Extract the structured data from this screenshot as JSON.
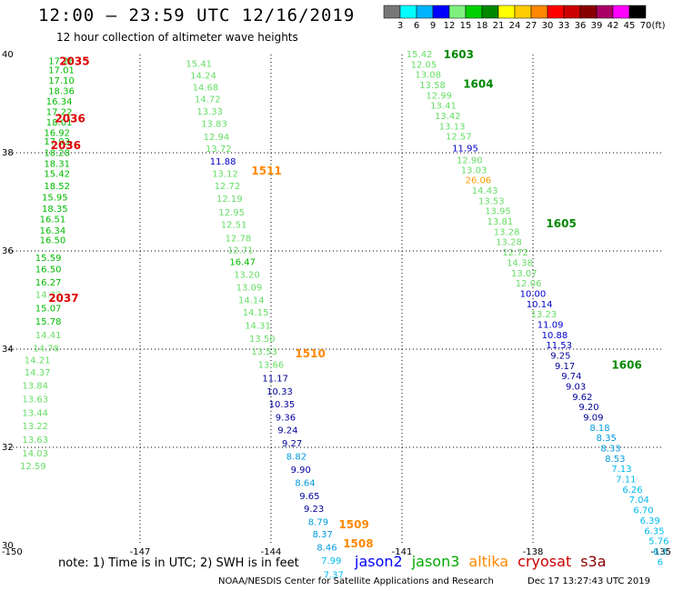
{
  "header": {
    "title": "12:00 — 23:59 UTC 12/16/2019",
    "subtitle": "12 hour collection of altimeter wave heights"
  },
  "color_scale": {
    "unit": "(ft)",
    "bins": [
      {
        "label": "3",
        "color": "#777777"
      },
      {
        "label": "6",
        "color": "#00ffff"
      },
      {
        "label": "9",
        "color": "#00b4ff"
      },
      {
        "label": "12",
        "color": "#0000ff"
      },
      {
        "label": "15",
        "color": "#7ef07e"
      },
      {
        "label": "18",
        "color": "#00d000"
      },
      {
        "label": "21",
        "color": "#008800"
      },
      {
        "label": "24",
        "color": "#ffff00"
      },
      {
        "label": "27",
        "color": "#ffcc00"
      },
      {
        "label": "30",
        "color": "#ff8800"
      },
      {
        "label": "33",
        "color": "#ff0000"
      },
      {
        "label": "36",
        "color": "#cc0000"
      },
      {
        "label": "39",
        "color": "#880000"
      },
      {
        "label": "42",
        "color": "#aa0066"
      },
      {
        "label": "45",
        "color": "#ff00ff"
      },
      {
        "label": "70",
        "color": "#000000"
      }
    ]
  },
  "axes": {
    "lon_labels": [
      "-150",
      "-147",
      "-144",
      "-141",
      "-138",
      "-135"
    ],
    "lat_labels": [
      "40",
      "38",
      "36",
      "34",
      "32",
      "30"
    ],
    "lon_range": [
      -150,
      -135
    ],
    "lat_range": [
      30,
      40
    ]
  },
  "pass_labels": [
    {
      "text": "2035",
      "lon": -148.85,
      "lat": 39.88,
      "color": "#dd0000"
    },
    {
      "text": "2036",
      "lon": -148.95,
      "lat": 38.71,
      "color": "#dd0000"
    },
    {
      "text": "2036",
      "lon": -149.05,
      "lat": 38.17,
      "color": "#dd0000"
    },
    {
      "text": "2037",
      "lon": -149.1,
      "lat": 35.06,
      "color": "#dd0000"
    },
    {
      "text": "1511",
      "lon": -144.45,
      "lat": 37.65,
      "color": "#ff8800"
    },
    {
      "text": "1510",
      "lon": -143.45,
      "lat": 33.93,
      "color": "#ff8800"
    },
    {
      "text": "1509",
      "lon": -142.45,
      "lat": 30.44,
      "color": "#ff8800"
    },
    {
      "text": "1508",
      "lon": -142.35,
      "lat": 30.06,
      "color": "#ff8800"
    },
    {
      "text": "1603",
      "lon": -140.05,
      "lat": 40.02,
      "color": "#008800"
    },
    {
      "text": "1604",
      "lon": -139.6,
      "lat": 39.42,
      "color": "#008800"
    },
    {
      "text": "1605",
      "lon": -137.7,
      "lat": 36.57,
      "color": "#008800"
    },
    {
      "text": "1606",
      "lon": -136.2,
      "lat": 33.69,
      "color": "#008800"
    }
  ],
  "tracks": [
    {
      "name": "cryosat",
      "points": [
        {
          "lon": -149.1,
          "lat": 39.88,
          "v": "17.28",
          "c": "#00bb00"
        },
        {
          "lon": -149.1,
          "lat": 39.69,
          "v": "17.01",
          "c": "#00bb00"
        },
        {
          "lon": -149.1,
          "lat": 39.48,
          "v": "17.10",
          "c": "#00bb00"
        },
        {
          "lon": -149.1,
          "lat": 39.27,
          "v": "18.36",
          "c": "#00bb00"
        },
        {
          "lon": -149.15,
          "lat": 39.06,
          "v": "16.34",
          "c": "#00bb00"
        },
        {
          "lon": -149.15,
          "lat": 38.84,
          "v": "17.22",
          "c": "#00bb00"
        },
        {
          "lon": -149.15,
          "lat": 38.63,
          "v": "18.01",
          "c": "#00bb00"
        },
        {
          "lon": -149.2,
          "lat": 38.42,
          "v": "16.92",
          "c": "#00bb00"
        },
        {
          "lon": -149.2,
          "lat": 38.24,
          "v": "17.93",
          "c": "#00bb00"
        },
        {
          "lon": -149.2,
          "lat": 38.01,
          "v": "18.28",
          "c": "#00bb00"
        },
        {
          "lon": -149.2,
          "lat": 37.79,
          "v": "18.31",
          "c": "#00bb00"
        },
        {
          "lon": -149.2,
          "lat": 37.58,
          "v": "15.42",
          "c": "#00bb00"
        },
        {
          "lon": -149.2,
          "lat": 37.33,
          "v": "18.52",
          "c": "#00bb00"
        },
        {
          "lon": -149.25,
          "lat": 37.1,
          "v": "15.95",
          "c": "#00bb00"
        },
        {
          "lon": -149.25,
          "lat": 36.87,
          "v": "18.35",
          "c": "#00bb00"
        },
        {
          "lon": -149.3,
          "lat": 36.66,
          "v": "16.51",
          "c": "#00bb00"
        },
        {
          "lon": -149.3,
          "lat": 36.43,
          "v": "16.34",
          "c": "#00bb00"
        },
        {
          "lon": -149.3,
          "lat": 36.23,
          "v": "16.50",
          "c": "#00bb00"
        },
        {
          "lon": -149.4,
          "lat": 35.87,
          "v": "15.59",
          "c": "#00bb00"
        },
        {
          "lon": -149.4,
          "lat": 35.64,
          "v": "16.50",
          "c": "#00bb00"
        },
        {
          "lon": -149.4,
          "lat": 35.37,
          "v": "16.27",
          "c": "#00bb00"
        },
        {
          "lon": -149.4,
          "lat": 35.12,
          "v": "14.32",
          "c": "#66dd66"
        },
        {
          "lon": -149.4,
          "lat": 34.84,
          "v": "15.07",
          "c": "#00bb00"
        },
        {
          "lon": -149.4,
          "lat": 34.57,
          "v": "15.78",
          "c": "#00bb00"
        },
        {
          "lon": -149.4,
          "lat": 34.3,
          "v": "14.41",
          "c": "#66dd66"
        },
        {
          "lon": -149.45,
          "lat": 34.03,
          "v": "14.78",
          "c": "#66dd66"
        },
        {
          "lon": -149.65,
          "lat": 33.79,
          "v": "14.21",
          "c": "#66dd66"
        },
        {
          "lon": -149.65,
          "lat": 33.54,
          "v": "14.37",
          "c": "#66dd66"
        },
        {
          "lon": -149.7,
          "lat": 33.27,
          "v": "13.84",
          "c": "#66dd66"
        },
        {
          "lon": -149.7,
          "lat": 32.99,
          "v": "13.63",
          "c": "#66dd66"
        },
        {
          "lon": -149.7,
          "lat": 32.71,
          "v": "13.44",
          "c": "#66dd66"
        },
        {
          "lon": -149.7,
          "lat": 32.44,
          "v": "13.22",
          "c": "#66dd66"
        },
        {
          "lon": -149.7,
          "lat": 32.17,
          "v": "13.63",
          "c": "#66dd66"
        },
        {
          "lon": -149.7,
          "lat": 31.89,
          "v": "14.03",
          "c": "#66dd66"
        },
        {
          "lon": -149.75,
          "lat": 31.63,
          "v": "12.59",
          "c": "#66dd66"
        }
      ]
    },
    {
      "name": "altika",
      "points": [
        {
          "lon": -145.95,
          "lat": 39.82,
          "v": "15.41",
          "c": "#66dd66"
        },
        {
          "lon": -145.85,
          "lat": 39.58,
          "v": "14.24",
          "c": "#66dd66"
        },
        {
          "lon": -145.8,
          "lat": 39.34,
          "v": "14.68",
          "c": "#66dd66"
        },
        {
          "lon": -145.75,
          "lat": 39.1,
          "v": "14.72",
          "c": "#66dd66"
        },
        {
          "lon": -145.7,
          "lat": 38.85,
          "v": "13.33",
          "c": "#66dd66"
        },
        {
          "lon": -145.6,
          "lat": 38.6,
          "v": "13.83",
          "c": "#66dd66"
        },
        {
          "lon": -145.55,
          "lat": 38.33,
          "v": "12.94",
          "c": "#66dd66"
        },
        {
          "lon": -145.5,
          "lat": 38.09,
          "v": "13.72",
          "c": "#66dd66"
        },
        {
          "lon": -145.4,
          "lat": 37.83,
          "v": "11.88",
          "c": "#0000cc"
        },
        {
          "lon": -145.35,
          "lat": 37.58,
          "v": "13.12",
          "c": "#66dd66"
        },
        {
          "lon": -145.3,
          "lat": 37.33,
          "v": "12.72",
          "c": "#66dd66"
        },
        {
          "lon": -145.25,
          "lat": 37.07,
          "v": "12.19",
          "c": "#66dd66"
        },
        {
          "lon": -145.2,
          "lat": 36.8,
          "v": "12.95",
          "c": "#66dd66"
        },
        {
          "lon": -145.15,
          "lat": 36.55,
          "v": "12.51",
          "c": "#66dd66"
        },
        {
          "lon": -145.05,
          "lat": 36.27,
          "v": "12.78",
          "c": "#66dd66"
        },
        {
          "lon": -145.0,
          "lat": 36.03,
          "v": "12.71",
          "c": "#66dd66"
        },
        {
          "lon": -144.95,
          "lat": 35.79,
          "v": "16.47",
          "c": "#00bb00"
        },
        {
          "lon": -144.85,
          "lat": 35.53,
          "v": "13.20",
          "c": "#66dd66"
        },
        {
          "lon": -144.8,
          "lat": 35.27,
          "v": "13.09",
          "c": "#66dd66"
        },
        {
          "lon": -144.75,
          "lat": 35.01,
          "v": "14.14",
          "c": "#66dd66"
        },
        {
          "lon": -144.65,
          "lat": 34.76,
          "v": "14.15",
          "c": "#66dd66"
        },
        {
          "lon": -144.6,
          "lat": 34.49,
          "v": "14.31",
          "c": "#66dd66"
        },
        {
          "lon": -144.5,
          "lat": 34.22,
          "v": "13.50",
          "c": "#66dd66"
        },
        {
          "lon": -144.45,
          "lat": 33.96,
          "v": "13.53",
          "c": "#66dd66"
        },
        {
          "lon": -144.3,
          "lat": 33.69,
          "v": "13.66",
          "c": "#66dd66"
        },
        {
          "lon": -144.2,
          "lat": 33.42,
          "v": "11.17",
          "c": "#000099"
        },
        {
          "lon": -144.1,
          "lat": 33.15,
          "v": "10.33",
          "c": "#000099"
        },
        {
          "lon": -144.05,
          "lat": 32.89,
          "v": "10.35",
          "c": "#000099"
        },
        {
          "lon": -143.9,
          "lat": 32.62,
          "v": "9.36",
          "c": "#000099"
        },
        {
          "lon": -143.85,
          "lat": 32.36,
          "v": "9.24",
          "c": "#000099"
        },
        {
          "lon": -143.75,
          "lat": 32.09,
          "v": "9.27",
          "c": "#000099"
        },
        {
          "lon": -143.65,
          "lat": 31.82,
          "v": "8.82",
          "c": "#0099dd"
        },
        {
          "lon": -143.55,
          "lat": 31.56,
          "v": "9.90",
          "c": "#000099"
        },
        {
          "lon": -143.45,
          "lat": 31.29,
          "v": "8.64",
          "c": "#0099dd"
        },
        {
          "lon": -143.35,
          "lat": 31.02,
          "v": "9.65",
          "c": "#000099"
        },
        {
          "lon": -143.25,
          "lat": 30.76,
          "v": "9.23",
          "c": "#000099"
        },
        {
          "lon": -143.15,
          "lat": 30.49,
          "v": "8.79",
          "c": "#0099dd"
        },
        {
          "lon": -143.05,
          "lat": 30.24,
          "v": "8.37",
          "c": "#0099dd"
        },
        {
          "lon": -142.95,
          "lat": 29.97,
          "v": "8.46",
          "c": "#0099dd"
        },
        {
          "lon": -142.85,
          "lat": 29.7,
          "v": "7.99",
          "c": "#00bbee"
        },
        {
          "lon": -142.8,
          "lat": 29.42,
          "v": "7.37",
          "c": "#00bbee"
        }
      ]
    },
    {
      "name": "jason3",
      "points": [
        {
          "lon": -140.9,
          "lat": 40.02,
          "v": "15.42",
          "c": "#66dd66"
        },
        {
          "lon": -140.8,
          "lat": 39.81,
          "v": "12.05",
          "c": "#66dd66"
        },
        {
          "lon": -140.7,
          "lat": 39.6,
          "v": "13.08",
          "c": "#66dd66"
        },
        {
          "lon": -140.6,
          "lat": 39.39,
          "v": "13.58",
          "c": "#66dd66"
        },
        {
          "lon": -140.45,
          "lat": 39.18,
          "v": "12.99",
          "c": "#66dd66"
        },
        {
          "lon": -140.35,
          "lat": 38.97,
          "v": "13.41",
          "c": "#66dd66"
        },
        {
          "lon": -140.25,
          "lat": 38.76,
          "v": "13.42",
          "c": "#66dd66"
        },
        {
          "lon": -140.15,
          "lat": 38.55,
          "v": "13.13",
          "c": "#66dd66"
        },
        {
          "lon": -140.0,
          "lat": 38.34,
          "v": "12.57",
          "c": "#66dd66"
        },
        {
          "lon": -139.85,
          "lat": 38.1,
          "v": "11.95",
          "c": "#0000cc"
        },
        {
          "lon": -139.75,
          "lat": 37.86,
          "v": "12.90",
          "c": "#66dd66"
        },
        {
          "lon": -139.65,
          "lat": 37.66,
          "v": "13.03",
          "c": "#66dd66"
        },
        {
          "lon": -139.55,
          "lat": 37.45,
          "v": "26.06",
          "c": "#ff9900"
        },
        {
          "lon": -139.4,
          "lat": 37.24,
          "v": "14.43",
          "c": "#66dd66"
        },
        {
          "lon": -139.25,
          "lat": 37.03,
          "v": "13.53",
          "c": "#66dd66"
        },
        {
          "lon": -139.1,
          "lat": 36.82,
          "v": "13.95",
          "c": "#66dd66"
        },
        {
          "lon": -139.05,
          "lat": 36.61,
          "v": "13.81",
          "c": "#66dd66"
        },
        {
          "lon": -138.9,
          "lat": 36.4,
          "v": "13.28",
          "c": "#66dd66"
        },
        {
          "lon": -138.85,
          "lat": 36.19,
          "v": "13.28",
          "c": "#66dd66"
        },
        {
          "lon": -138.7,
          "lat": 35.98,
          "v": "12.72",
          "c": "#66dd66"
        },
        {
          "lon": -138.6,
          "lat": 35.77,
          "v": "14.38",
          "c": "#66dd66"
        },
        {
          "lon": -138.5,
          "lat": 35.56,
          "v": "13.07",
          "c": "#66dd66"
        },
        {
          "lon": -138.4,
          "lat": 35.35,
          "v": "12.06",
          "c": "#66dd66"
        },
        {
          "lon": -138.3,
          "lat": 35.14,
          "v": "10.00",
          "c": "#0000cc"
        },
        {
          "lon": -138.15,
          "lat": 34.93,
          "v": "10.14",
          "c": "#0000cc"
        },
        {
          "lon": -138.05,
          "lat": 34.72,
          "v": "13.23",
          "c": "#66dd66"
        },
        {
          "lon": -137.9,
          "lat": 34.51,
          "v": "11.09",
          "c": "#0000cc"
        },
        {
          "lon": -137.8,
          "lat": 34.3,
          "v": "10.88",
          "c": "#0000cc"
        },
        {
          "lon": -137.7,
          "lat": 34.09,
          "v": "11.53",
          "c": "#0000cc"
        },
        {
          "lon": -137.6,
          "lat": 33.88,
          "v": "9.25",
          "c": "#000099"
        },
        {
          "lon": -137.5,
          "lat": 33.67,
          "v": "9.17",
          "c": "#000099"
        },
        {
          "lon": -137.35,
          "lat": 33.46,
          "v": "9.74",
          "c": "#000099"
        },
        {
          "lon": -137.25,
          "lat": 33.25,
          "v": "9.03",
          "c": "#000099"
        },
        {
          "lon": -137.1,
          "lat": 33.04,
          "v": "9.62",
          "c": "#000099"
        },
        {
          "lon": -136.95,
          "lat": 32.83,
          "v": "9.20",
          "c": "#000099"
        },
        {
          "lon": -136.85,
          "lat": 32.62,
          "v": "9.09",
          "c": "#000099"
        },
        {
          "lon": -136.7,
          "lat": 32.41,
          "v": "8.18",
          "c": "#0099dd"
        },
        {
          "lon": -136.55,
          "lat": 32.2,
          "v": "8.35",
          "c": "#0099dd"
        },
        {
          "lon": -136.45,
          "lat": 31.99,
          "v": "8.33",
          "c": "#0099dd"
        },
        {
          "lon": -136.35,
          "lat": 31.78,
          "v": "8.53",
          "c": "#0099dd"
        },
        {
          "lon": -136.2,
          "lat": 31.57,
          "v": "7.13",
          "c": "#00bbee"
        },
        {
          "lon": -136.1,
          "lat": 31.36,
          "v": "7.11",
          "c": "#00bbee"
        },
        {
          "lon": -135.95,
          "lat": 31.15,
          "v": "6.26",
          "c": "#00bbee"
        },
        {
          "lon": -135.8,
          "lat": 30.94,
          "v": "7.04",
          "c": "#00bbee"
        },
        {
          "lon": -135.7,
          "lat": 30.73,
          "v": "6.70",
          "c": "#00bbee"
        },
        {
          "lon": -135.55,
          "lat": 30.52,
          "v": "6.39",
          "c": "#00bbee"
        },
        {
          "lon": -135.45,
          "lat": 30.31,
          "v": "6.35",
          "c": "#00bbee"
        },
        {
          "lon": -135.35,
          "lat": 30.1,
          "v": "5.76",
          "c": "#00bbee"
        },
        {
          "lon": -135.25,
          "lat": 29.89,
          "v": "6.3",
          "c": "#00bbee"
        },
        {
          "lon": -135.15,
          "lat": 29.68,
          "v": "6",
          "c": "#00bbee"
        }
      ]
    }
  ],
  "note": "note:  1) Time is in UTC;  2) SWH is in feet",
  "satellites": [
    {
      "name": "jason2",
      "color": "#0000ff"
    },
    {
      "name": "jason3",
      "color": "#00aa00"
    },
    {
      "name": "altika",
      "color": "#ff8800"
    },
    {
      "name": "cryosat",
      "color": "#cc0000"
    },
    {
      "name": "s3a",
      "color": "#880000"
    }
  ],
  "credit": "NOAA/NESDIS Center for Satellite Applications and Research",
  "timestamp": "Dec 17 13:27:43 UTC 2019"
}
